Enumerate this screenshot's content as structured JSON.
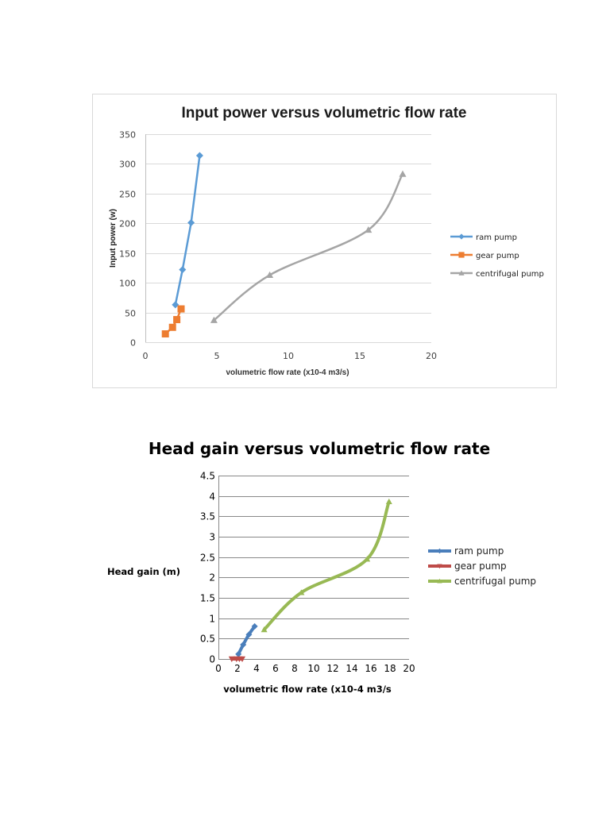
{
  "chart_data": [
    {
      "type": "line",
      "title": "Input power versus volumetric flow rate",
      "xlabel": "volumetric flow rate (x10-4 m3/s)",
      "ylabel": "Input power (w)",
      "xlim": [
        0,
        20
      ],
      "ylim": [
        0,
        350
      ],
      "xticks": [
        "0",
        "5",
        "10",
        "15",
        "20"
      ],
      "yticks": [
        "0",
        "50",
        "100",
        "150",
        "200",
        "250",
        "300",
        "350"
      ],
      "grid": true,
      "legend": "right",
      "series": [
        {
          "name": "ram pump",
          "color": "#5B9BD5",
          "marker": "diamond",
          "smooth": false,
          "x": [
            2.1,
            2.6,
            3.2,
            3.8
          ],
          "y": [
            63,
            122,
            201,
            314
          ]
        },
        {
          "name": "gear pump",
          "color": "#ED7D31",
          "marker": "square",
          "smooth": false,
          "x": [
            1.4,
            1.9,
            2.2,
            2.5
          ],
          "y": [
            14,
            25,
            38,
            56
          ]
        },
        {
          "name": "centrifugal pump",
          "color": "#A5A5A5",
          "marker": "triangle",
          "smooth": true,
          "x": [
            4.8,
            8.7,
            15.6,
            18.0
          ],
          "y": [
            37,
            113,
            189,
            283
          ]
        }
      ]
    },
    {
      "type": "line",
      "title": "Head gain versus volumetric flow rate",
      "xlabel": "volumetric flow rate (x10-4 m3/s",
      "ylabel": "Head gain (m)",
      "xlim": [
        0,
        20
      ],
      "ylim": [
        0,
        4.5
      ],
      "xticks": [
        "0",
        "2",
        "4",
        "6",
        "8",
        "10",
        "12",
        "14",
        "16",
        "18",
        "20"
      ],
      "yticks": [
        "0",
        "0.5",
        "1",
        "1.5",
        "2",
        "2.5",
        "3",
        "3.5",
        "4",
        "4.5"
      ],
      "grid": true,
      "legend": "right",
      "series": [
        {
          "name": "ram pump",
          "color": "#4A7EBB",
          "marker": "diamond",
          "smooth": true,
          "x": [
            2.1,
            2.6,
            3.2,
            3.8
          ],
          "y": [
            0.12,
            0.35,
            0.6,
            0.8
          ]
        },
        {
          "name": "gear pump",
          "color": "#BE4B48",
          "marker": "triangle-down",
          "smooth": true,
          "x": [
            1.4,
            1.9,
            2.2,
            2.5
          ],
          "y": [
            0,
            0,
            0,
            0
          ]
        },
        {
          "name": "centrifugal pump",
          "color": "#98B954",
          "marker": "triangle",
          "smooth": true,
          "x": [
            4.8,
            8.7,
            15.6,
            17.9
          ],
          "y": [
            0.72,
            1.63,
            2.45,
            3.86
          ]
        }
      ]
    }
  ]
}
